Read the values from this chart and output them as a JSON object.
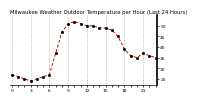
{
  "title": "Milwaukee Weather Outdoor Temperature per Hour (Last 24 Hours)",
  "hours": [
    0,
    1,
    2,
    3,
    4,
    5,
    6,
    7,
    8,
    9,
    10,
    11,
    12,
    13,
    14,
    15,
    16,
    17,
    18,
    19,
    20,
    21,
    22,
    23
  ],
  "temps": [
    27,
    26,
    25,
    24,
    25,
    26,
    27,
    37,
    47,
    51,
    52,
    51,
    50,
    50,
    49,
    49,
    48,
    45,
    39,
    36,
    35,
    37,
    36,
    35
  ],
  "line_color": "#cc0000",
  "dot_color": "#000000",
  "bg_color": "#ffffff",
  "grid_color": "#999999",
  "ylim_min": 22,
  "ylim_max": 55,
  "ytick_values": [
    25,
    30,
    35,
    40,
    45,
    50
  ],
  "title_fontsize": 3.8,
  "tick_fontsize": 3.2,
  "vgrid_hours": [
    0,
    3,
    6,
    9,
    12,
    15,
    18,
    21
  ]
}
